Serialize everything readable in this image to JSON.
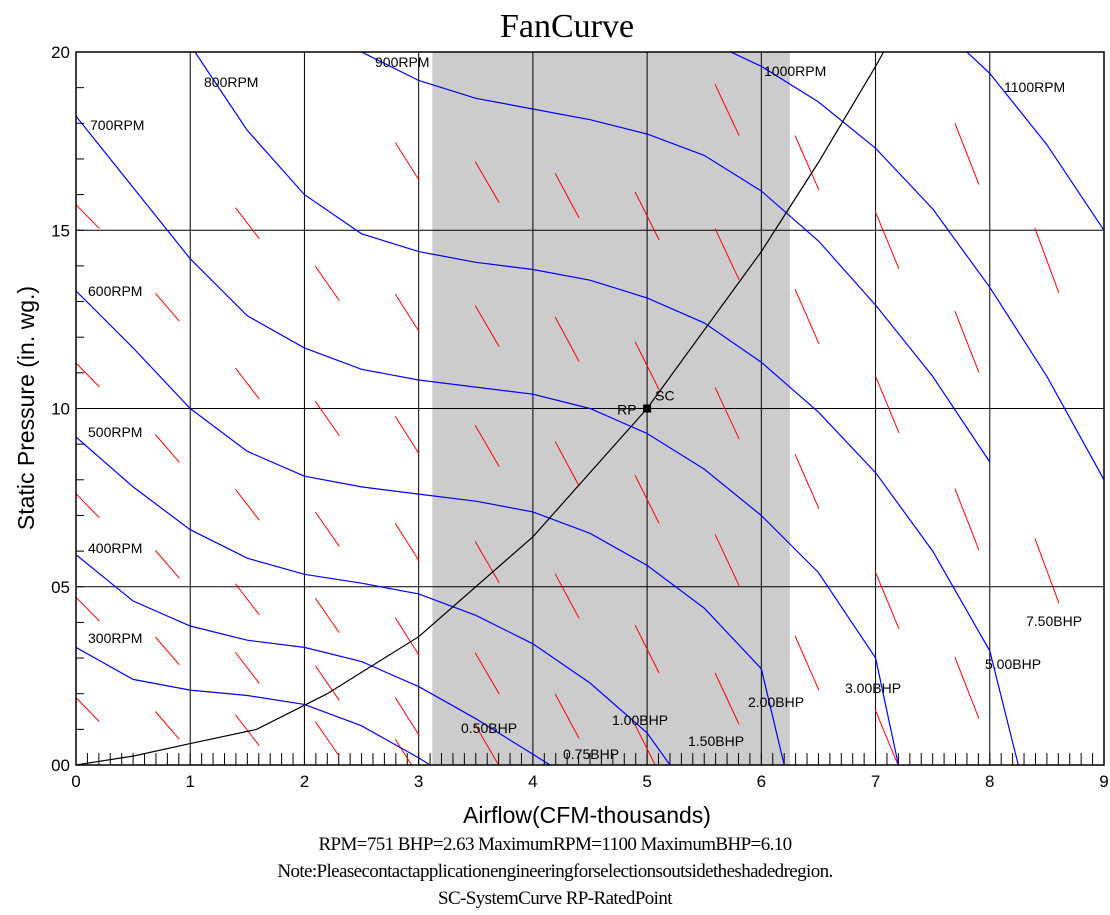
{
  "chart_data": {
    "type": "line",
    "title": "FanCurve",
    "xlabel": "Airflow(CFM-thousands)",
    "ylabel": "Static Pressure (in. wg.)",
    "xlim": [
      0,
      9
    ],
    "ylim": [
      0,
      2.0
    ],
    "x_ticks": [
      0,
      1,
      2,
      3,
      4,
      5,
      6,
      7,
      8,
      9
    ],
    "y_ticks": [
      0,
      0.5,
      1.0,
      1.5,
      2.0
    ],
    "y_tick_labels": [
      "00",
      "05",
      "10",
      "15",
      "20"
    ],
    "grid": true,
    "shaded_region": {
      "x": [
        3.12,
        6.25
      ],
      "color": "#cccccc"
    },
    "rpm_curves": [
      {
        "name": "300RPM",
        "label": "300RPM",
        "points": [
          [
            0,
            0.33
          ],
          [
            0.5,
            0.24
          ],
          [
            1.0,
            0.21
          ],
          [
            1.5,
            0.195
          ],
          [
            2.0,
            0.17
          ],
          [
            2.5,
            0.11
          ],
          [
            3.0,
            0.02
          ],
          [
            3.1,
            0.0
          ]
        ]
      },
      {
        "name": "400RPM",
        "label": "400RPM",
        "points": [
          [
            0,
            0.59
          ],
          [
            0.5,
            0.46
          ],
          [
            1.0,
            0.39
          ],
          [
            1.5,
            0.35
          ],
          [
            2.0,
            0.33
          ],
          [
            2.5,
            0.29
          ],
          [
            3.0,
            0.22
          ],
          [
            3.5,
            0.13
          ],
          [
            4.0,
            0.03
          ],
          [
            4.15,
            0.0
          ]
        ]
      },
      {
        "name": "500RPM",
        "label": "500RPM",
        "points": [
          [
            0,
            0.92
          ],
          [
            0.5,
            0.78
          ],
          [
            1.0,
            0.66
          ],
          [
            1.5,
            0.58
          ],
          [
            2.0,
            0.535
          ],
          [
            2.5,
            0.51
          ],
          [
            3.0,
            0.48
          ],
          [
            3.5,
            0.42
          ],
          [
            4.0,
            0.34
          ],
          [
            4.5,
            0.23
          ],
          [
            5.0,
            0.09
          ],
          [
            5.2,
            0.0
          ]
        ]
      },
      {
        "name": "600RPM",
        "label": "600RPM",
        "points": [
          [
            0,
            1.33
          ],
          [
            0.5,
            1.17
          ],
          [
            1.0,
            1.0
          ],
          [
            1.5,
            0.88
          ],
          [
            2.0,
            0.81
          ],
          [
            2.5,
            0.78
          ],
          [
            3.0,
            0.76
          ],
          [
            3.5,
            0.74
          ],
          [
            4.0,
            0.71
          ],
          [
            4.5,
            0.65
          ],
          [
            5.0,
            0.56
          ],
          [
            5.5,
            0.44
          ],
          [
            6.0,
            0.27
          ],
          [
            6.2,
            0.0
          ]
        ]
      },
      {
        "name": "700RPM",
        "label": "700RPM",
        "points": [
          [
            0,
            1.82
          ],
          [
            0.5,
            1.62
          ],
          [
            1.0,
            1.42
          ],
          [
            1.5,
            1.26
          ],
          [
            2.0,
            1.17
          ],
          [
            2.5,
            1.11
          ],
          [
            3.0,
            1.08
          ],
          [
            3.5,
            1.06
          ],
          [
            4.0,
            1.04
          ],
          [
            4.5,
            1.0
          ],
          [
            5.0,
            0.93
          ],
          [
            5.5,
            0.83
          ],
          [
            6.0,
            0.7
          ],
          [
            6.5,
            0.54
          ],
          [
            7.0,
            0.3
          ],
          [
            7.2,
            0.0
          ]
        ]
      },
      {
        "name": "800RPM",
        "label": "800RPM",
        "points": [
          [
            1.0,
            2.02
          ],
          [
            1.5,
            1.78
          ],
          [
            2.0,
            1.6
          ],
          [
            2.5,
            1.49
          ],
          [
            3.0,
            1.44
          ],
          [
            3.5,
            1.41
          ],
          [
            4.0,
            1.39
          ],
          [
            4.5,
            1.36
          ],
          [
            5.0,
            1.31
          ],
          [
            5.5,
            1.24
          ],
          [
            6.0,
            1.13
          ],
          [
            6.5,
            0.99
          ],
          [
            7.0,
            0.82
          ],
          [
            7.5,
            0.6
          ],
          [
            8.0,
            0.32
          ],
          [
            8.25,
            0.0
          ]
        ]
      },
      {
        "name": "900RPM",
        "label": "900RPM",
        "points": [
          [
            2.3,
            2.04
          ],
          [
            2.5,
            2.0
          ],
          [
            3.0,
            1.92
          ],
          [
            3.5,
            1.87
          ],
          [
            4.0,
            1.84
          ],
          [
            4.5,
            1.81
          ],
          [
            5.0,
            1.77
          ],
          [
            5.5,
            1.71
          ],
          [
            6.0,
            1.61
          ],
          [
            6.5,
            1.47
          ],
          [
            7.0,
            1.29
          ],
          [
            7.5,
            1.09
          ],
          [
            8.0,
            0.85
          ]
        ]
      },
      {
        "name": "1000RPM",
        "label": "1000RPM",
        "points": [
          [
            5.6,
            2.02
          ],
          [
            6.0,
            1.96
          ],
          [
            6.5,
            1.86
          ],
          [
            7.0,
            1.73
          ],
          [
            7.5,
            1.56
          ],
          [
            8.0,
            1.34
          ],
          [
            8.5,
            1.09
          ],
          [
            9.0,
            0.8
          ]
        ]
      },
      {
        "name": "1100RPM",
        "label": "1100RPM",
        "points": [
          [
            7.7,
            2.03
          ],
          [
            8.0,
            1.94
          ],
          [
            8.5,
            1.74
          ],
          [
            9.0,
            1.5
          ]
        ]
      }
    ],
    "bhp_labels": [
      "0.50BHP",
      "0.75BHP",
      "1.00BHP",
      "1.50BHP",
      "2.00BHP",
      "3.00BHP",
      "5.00BHP",
      "7.50BHP"
    ],
    "system_curve": {
      "points": [
        [
          0,
          0.0
        ],
        [
          0.5,
          0.025
        ],
        [
          1.0,
          0.06
        ],
        [
          1.58,
          0.1
        ],
        [
          2.2,
          0.2
        ],
        [
          3.0,
          0.36
        ],
        [
          4.0,
          0.64
        ],
        [
          5.0,
          1.0
        ],
        [
          6.0,
          1.44
        ],
        [
          6.5,
          1.69
        ],
        [
          7.0,
          1.96
        ],
        [
          7.07,
          2.0
        ]
      ]
    },
    "rated_point": {
      "x": 5.0,
      "y": 1.0,
      "labels": [
        "RP",
        "SC"
      ]
    }
  },
  "footer": {
    "line1": "RPM=751 BHP=2.63 MaximumRPM=1100 MaximumBHP=6.10",
    "line2": "Note:Pleasecontactapplicationengineeringforselectionsoutsidetheshadedregion.",
    "line3": "SC-SystemCurve RP-RatedPoint"
  }
}
